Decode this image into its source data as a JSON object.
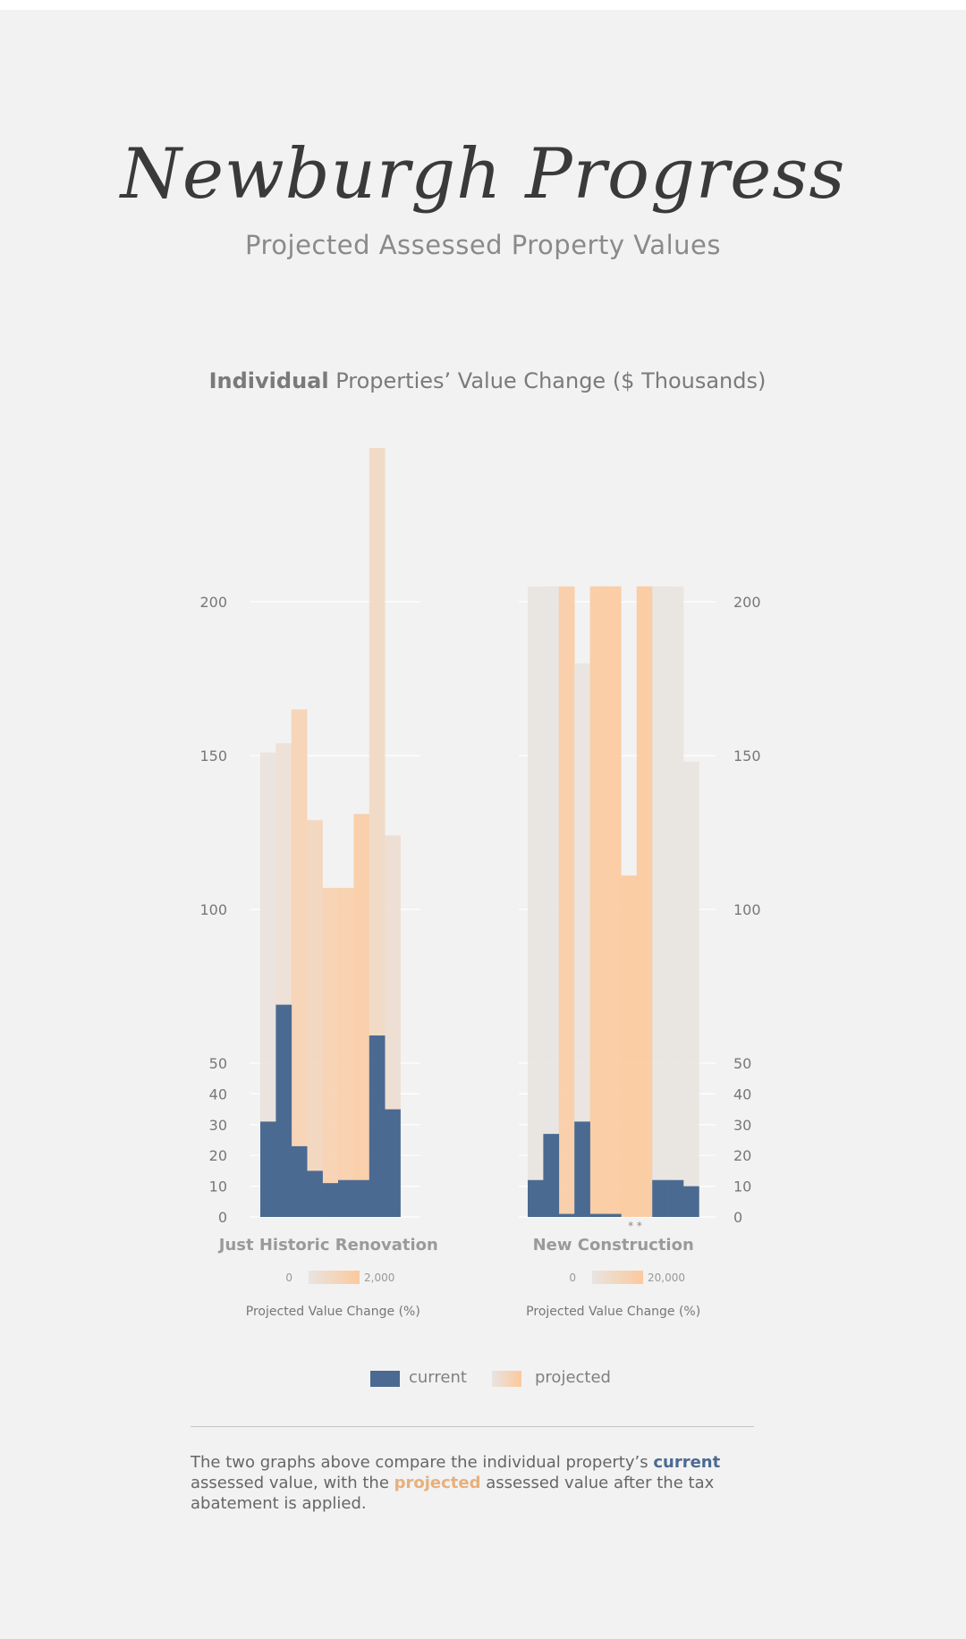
{
  "header": {
    "title": "Newburgh Progress",
    "subtitle": "Projected Assessed Property Values"
  },
  "chart_heading": {
    "bold": "Individual",
    "rest": " Properties’ Value Change ($ Thousands)"
  },
  "colors": {
    "current": "#4b6a92",
    "projected_low": "#e8e4e1",
    "projected_high": "#fcc99c",
    "text": "#777777"
  },
  "chart_data": [
    {
      "type": "bar",
      "title": "Just Historic Renovation",
      "ylim": [
        0,
        250
      ],
      "y_ticks": [
        0,
        10,
        20,
        30,
        40,
        50,
        100,
        150,
        200
      ],
      "y_scale": "piecewise: 0-50 linear fine, 50-200 compressed",
      "series": [
        {
          "name": "current",
          "values": [
            31,
            69,
            23,
            15,
            11,
            12,
            12,
            59,
            35
          ]
        },
        {
          "name": "projected",
          "values": [
            151,
            154,
            165,
            129,
            107,
            107,
            131,
            250,
            124
          ]
        }
      ],
      "projected_change_pct": [
        200,
        350,
        1400,
        1100,
        1450,
        1600,
        1800,
        900,
        500
      ],
      "color_scale": {
        "label": "Projected Value Change (%)",
        "min_label": "0",
        "max_label": "2,000"
      },
      "x_label": "Projected Value Change (%)"
    },
    {
      "type": "bar",
      "title": "New Construction",
      "ylim": [
        0,
        250
      ],
      "y_ticks": [
        0,
        10,
        20,
        30,
        40,
        50,
        100,
        150,
        200
      ],
      "series": [
        {
          "name": "current",
          "values": [
            12,
            27,
            1,
            31,
            1,
            1,
            0,
            0,
            12,
            12,
            10
          ]
        },
        {
          "name": "projected",
          "values": [
            205,
            205,
            205,
            180,
            205,
            205,
            111,
            205,
            205,
            205,
            148
          ]
        }
      ],
      "projected_change_pct": [
        200,
        400,
        18000,
        600,
        19000,
        19500,
        20000,
        20000,
        400,
        300,
        300
      ],
      "annotation": "* *",
      "color_scale": {
        "label": "Projected Value Change (%)",
        "min_label": "0",
        "max_label": "20,000"
      },
      "x_label": "Projected Value Change (%)"
    }
  ],
  "legend": {
    "current": "current",
    "projected": "projected"
  },
  "caption": {
    "part1": "The two graphs above compare the individual property’s ",
    "current": "current",
    "part2": " assessed value, with the ",
    "projected": "projected",
    "part3": " assessed value after the tax abatement is applied."
  }
}
